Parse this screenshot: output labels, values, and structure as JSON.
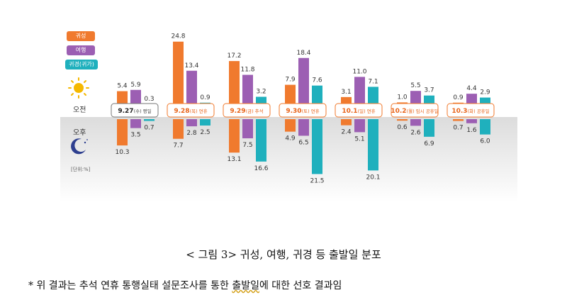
{
  "legend": {
    "items": [
      {
        "label": "귀성",
        "color": "#f07a2e"
      },
      {
        "label": "여행",
        "color": "#9c5fb3"
      },
      {
        "label": "귀경(귀가)",
        "color": "#1fb0bd"
      }
    ]
  },
  "side_labels": {
    "am": "오전",
    "pm": "오후",
    "unit": "[단위:%]"
  },
  "icons": {
    "am_icon": "sun-icon",
    "pm_icon": "moon-icon"
  },
  "caption": {
    "title": "< 그림 3> 귀성, 여행, 귀경 등 출발일 분포",
    "note_prefix": "* 위 결과는 추석 연휴 통행실태 설문조사를 통한 ",
    "note_underlined": "출발일",
    "note_suffix": "에 대한 선호 결과임"
  },
  "chart_data": {
    "type": "bar",
    "categories": [
      "9.27(수) 평일",
      "9.28(목) 연휴",
      "9.29(금) 추석",
      "9.30(토) 연휴",
      "10.1(일) 연휴",
      "10.2(월) 임시 공휴일",
      "10.3(화) 공휴일"
    ],
    "category_date_labels": [
      "9.27",
      "9.28",
      "9.29",
      "9.30",
      "10.1",
      "10.2",
      "10.3"
    ],
    "category_day_labels": [
      "(수) 평일",
      "(목) 연휴",
      "(금) 추석",
      "(토) 연휴",
      "(일) 연휴",
      "(월) 임시 공휴일",
      "(화) 공휴일"
    ],
    "unit": "%",
    "series": [
      {
        "name": "귀성",
        "color": "#f07a2e",
        "am": [
          5.4,
          24.8,
          17.2,
          7.9,
          3.1,
          1.0,
          0.9
        ],
        "pm": [
          10.3,
          7.7,
          13.1,
          4.9,
          2.4,
          0.6,
          0.7
        ]
      },
      {
        "name": "여행",
        "color": "#9c5fb3",
        "am": [
          5.9,
          13.4,
          11.8,
          18.4,
          11.0,
          5.5,
          4.4
        ],
        "pm": [
          3.5,
          2.8,
          7.5,
          6.5,
          5.1,
          2.6,
          1.6
        ]
      },
      {
        "name": "귀경(귀가)",
        "color": "#1fb0bd",
        "am": [
          0.3,
          0.9,
          3.2,
          7.6,
          7.1,
          3.7,
          2.9
        ],
        "pm": [
          0.7,
          2.5,
          16.6,
          21.5,
          20.1,
          6.9,
          6.0
        ]
      }
    ],
    "highlight_categories": [
      "9.28(목) 연휴",
      "9.29(금) 추석",
      "9.30(토) 연휴",
      "10.1(일) 연휴",
      "10.2(월) 임시 공휴일",
      "10.3(화) 공휴일"
    ],
    "grid": false
  }
}
